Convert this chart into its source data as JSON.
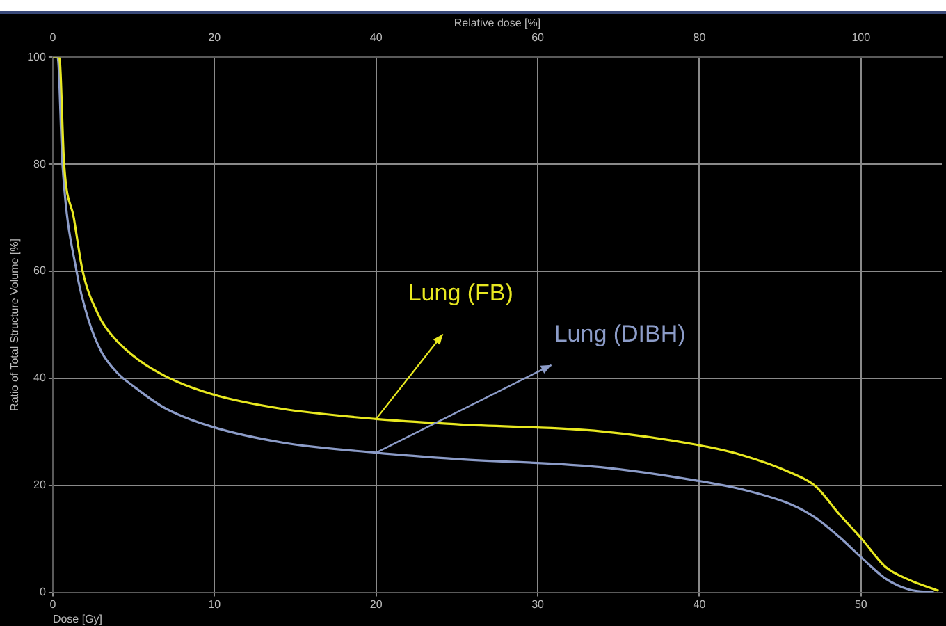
{
  "chart_data": {
    "type": "line",
    "xlabel": "Dose [Gy]",
    "x2label": "Relative dose [%]",
    "ylabel": "Ratio of Total Structure Volume [%]",
    "xlim": [
      0,
      55
    ],
    "xticks": [
      0,
      10,
      20,
      30,
      40,
      50
    ],
    "x2lim": [
      0,
      110
    ],
    "x2ticks": [
      0,
      20,
      40,
      60,
      80,
      100
    ],
    "ylim": [
      0,
      100
    ],
    "yticks": [
      0,
      20,
      40,
      60,
      80,
      100
    ],
    "grid": true,
    "legend": false,
    "marker": "none",
    "line_style": "solid",
    "series": [
      {
        "name": "Lung (FB)",
        "color": "#e8e820",
        "x": [
          0,
          0.4,
          0.7,
          1.3,
          1.85,
          2.8,
          3.4,
          4.85,
          6.9,
          9.9,
          14.2,
          20,
          25.1,
          33.9,
          39.8,
          42.7,
          45.7,
          47.2,
          48.6,
          50.1,
          51.5,
          53,
          54.8
        ],
        "values": [
          100,
          100,
          80,
          70,
          60,
          52,
          49,
          44.5,
          40.5,
          37,
          34.3,
          32.4,
          31.4,
          30.1,
          27.6,
          25.6,
          22.3,
          19.8,
          14.8,
          9.8,
          4.8,
          2.3,
          0.3
        ]
      },
      {
        "name": "Lung (DIBH)",
        "color": "#8c9cc8",
        "x": [
          0,
          0.3,
          0.6,
          1.47,
          2.2,
          3,
          4,
          5,
          6.9,
          9.8,
          14.2,
          20,
          25.1,
          33.9,
          39.8,
          42.7,
          45.7,
          47.2,
          48.6,
          50.1,
          51.5,
          53,
          54.5
        ],
        "values": [
          100,
          100,
          80,
          60,
          51,
          45,
          41,
          38.5,
          34.5,
          31,
          28,
          26.1,
          24.9,
          23.4,
          20.9,
          19.2,
          16.4,
          13.9,
          10.5,
          6.3,
          2.6,
          0.5,
          0
        ]
      }
    ]
  }
}
